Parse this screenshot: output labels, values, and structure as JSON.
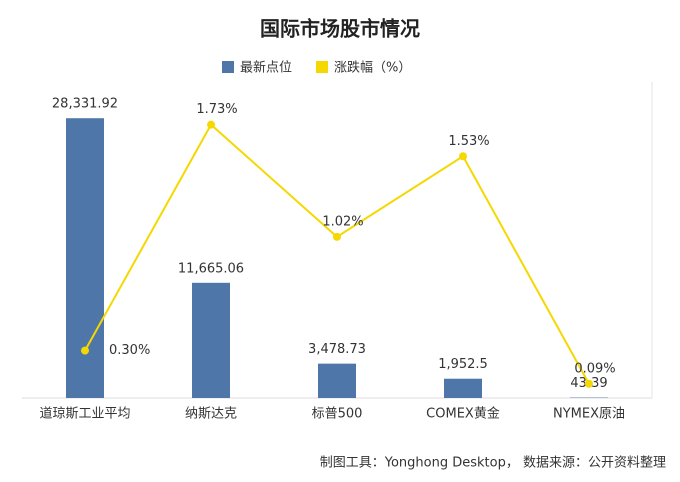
{
  "chart_data": {
    "type": "bar",
    "title": "国际市场股市情况",
    "categories": [
      "道琼斯工业平均",
      "纳斯达克",
      "标普500",
      "COMEX黄金",
      "NYMEX原油"
    ],
    "series": [
      {
        "name": "最新点位",
        "type": "bar",
        "color": "#4e76a8",
        "values": [
          28331.92,
          11665.06,
          3478.73,
          1952.5,
          43.39
        ],
        "value_labels": [
          "28,331.92",
          "11,665.06",
          "3,478.73",
          "1,952.5",
          "43.39"
        ]
      },
      {
        "name": "涨跌幅（%）",
        "type": "line",
        "axis": "y2",
        "color": "#f5d800",
        "values": [
          0.3,
          1.73,
          1.02,
          1.53,
          0.09
        ],
        "value_labels": [
          "0.30%",
          "1.73%",
          "1.02%",
          "1.53%",
          "0.09%"
        ]
      }
    ],
    "ylim": [
      0,
      32000
    ],
    "y2lim": [
      0,
      2
    ],
    "note": "制图工具：Yonghong Desktop， 数据来源：公开资料整理"
  }
}
